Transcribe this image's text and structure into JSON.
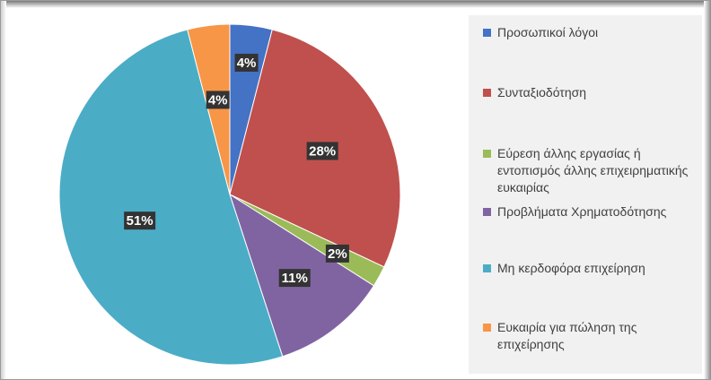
{
  "chart_data": {
    "type": "pie",
    "title": "",
    "slices": [
      {
        "label": "Προσωπικοί λόγοι",
        "value": 4,
        "display": "4%",
        "color": "#4472C4"
      },
      {
        "label": "Συνταξιοδότηση",
        "value": 28,
        "display": "28%",
        "color": "#C0504D"
      },
      {
        "label": "Εύρεση άλλης εργασίας ή εντοπισμός άλλης επιχειρηματικής ευκαιρίας",
        "value": 2,
        "display": "2%",
        "color": "#9BBB59"
      },
      {
        "label": "Προβλήματα Χρηματοδότησης",
        "value": 11,
        "display": "11%",
        "color": "#8064A2"
      },
      {
        "label": "Μη κερδοφόρα επιχείρηση",
        "value": 51,
        "display": "51%",
        "color": "#4BACC6"
      },
      {
        "label": "Ευκαιρία για πώληση της επιχείρησης",
        "value": 4,
        "display": "4%",
        "color": "#F79646"
      }
    ],
    "legend_position": "right"
  }
}
